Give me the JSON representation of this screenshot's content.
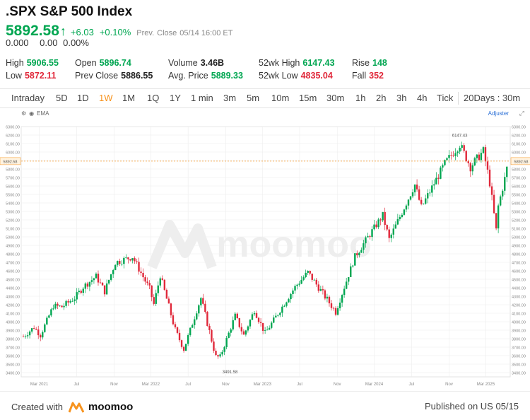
{
  "header": {
    "title": ".SPX S&P 500 Index",
    "price": "5892.58",
    "change": "+6.03",
    "change_pct": "+0.10%",
    "prev_label": "Prev.",
    "close_label": "Close",
    "close_time": "05/14 16:00 ET",
    "ext_change": "0.000",
    "ext_value": "0.00",
    "ext_pct": "0.00%"
  },
  "stats": {
    "high_label": "High",
    "high": "5906.55",
    "low_label": "Low",
    "low": "5872.11",
    "open_label": "Open",
    "open": "5896.74",
    "prev_close_label": "Prev Close",
    "prev_close": "5886.55",
    "volume_label": "Volume",
    "volume": "3.46B",
    "avg_price_label": "Avg. Price",
    "avg_price": "5889.33",
    "wk52_high_label": "52wk High",
    "wk52_high": "6147.43",
    "wk52_low_label": "52wk Low",
    "wk52_low": "4835.04",
    "rise_label": "Rise",
    "rise": "148",
    "fall_label": "Fall",
    "fall": "352"
  },
  "tabs": [
    "Intraday",
    "5D",
    "1D",
    "1W",
    "1M",
    "1Q",
    "1Y",
    "1 min",
    "3m",
    "5m",
    "10m",
    "15m",
    "30m",
    "1h",
    "2h",
    "3h",
    "4h",
    "Tick"
  ],
  "active_tab": "1W",
  "period_selector": "20Days : 30m",
  "chart_toolbar": {
    "indicator": "EMA",
    "adjuster": "Adjuster"
  },
  "footer": {
    "created_label": "Created with",
    "brand": "moomoo",
    "published": "Published on US 05/15"
  },
  "colors": {
    "up": "#00a651",
    "down": "#e0283a",
    "accent": "#f7931e",
    "grid": "#ececec"
  },
  "chart_data": {
    "type": "candlestick",
    "title": "",
    "interval": "1W",
    "ylim": [
      3350,
      6300
    ],
    "y_ticks": [
      3400,
      3500,
      3600,
      3700,
      3800,
      3900,
      4000,
      4100,
      4200,
      4300,
      4400,
      4500,
      4600,
      4700,
      4800,
      4900,
      5000,
      5100,
      5200,
      5300,
      5400,
      5500,
      5600,
      5700,
      5800,
      5900,
      6000,
      6100,
      6200,
      6300
    ],
    "x_tick_labels": [
      "Mar 2021",
      "Jul",
      "Nov",
      "Mar 2022",
      "Jul",
      "Nov",
      "Mar 2023",
      "Jul",
      "Nov",
      "Mar 2024",
      "Jul",
      "Nov",
      "Mar 2025"
    ],
    "last_price": 5892.58,
    "annotations": [
      {
        "label": "6147.43",
        "value": 6147.43,
        "kind": "high"
      },
      {
        "label": "3491.58",
        "value": 3491.58,
        "kind": "low"
      }
    ],
    "close_path": [
      [
        "2021-01-08",
        3825
      ],
      [
        "2021-02-12",
        3935
      ],
      [
        "2021-03-05",
        3842
      ],
      [
        "2021-04-16",
        4185
      ],
      [
        "2021-05-14",
        4175
      ],
      [
        "2021-06-25",
        4280
      ],
      [
        "2021-07-23",
        4411
      ],
      [
        "2021-09-03",
        4535
      ],
      [
        "2021-10-01",
        4357
      ],
      [
        "2021-11-05",
        4697
      ],
      [
        "2021-12-31",
        4766
      ],
      [
        "2022-02-25",
        4385
      ],
      [
        "2022-03-11",
        4205
      ],
      [
        "2022-04-01",
        4545
      ],
      [
        "2022-05-20",
        3901
      ],
      [
        "2022-06-17",
        3675
      ],
      [
        "2022-08-12",
        4280
      ],
      [
        "2022-09-30",
        3585
      ],
      [
        "2022-10-14",
        3585
      ],
      [
        "2022-12-02",
        4071
      ],
      [
        "2022-12-30",
        3840
      ],
      [
        "2023-02-03",
        4136
      ],
      [
        "2023-03-10",
        3862
      ],
      [
        "2023-06-16",
        4410
      ],
      [
        "2023-07-28",
        4582
      ],
      [
        "2023-10-27",
        4117
      ],
      [
        "2023-12-29",
        4770
      ],
      [
        "2024-03-29",
        5254
      ],
      [
        "2024-04-19",
        4967
      ],
      [
        "2024-07-12",
        5615
      ],
      [
        "2024-08-02",
        5346
      ],
      [
        "2024-10-18",
        5865
      ],
      [
        "2024-12-06",
        6090
      ],
      [
        "2025-01-10",
        5827
      ],
      [
        "2025-02-21",
        6013
      ],
      [
        "2025-03-14",
        5639
      ],
      [
        "2025-04-04",
        5074
      ],
      [
        "2025-04-11",
        5363
      ],
      [
        "2025-05-02",
        5686
      ],
      [
        "2025-05-14",
        5892.58
      ]
    ]
  }
}
